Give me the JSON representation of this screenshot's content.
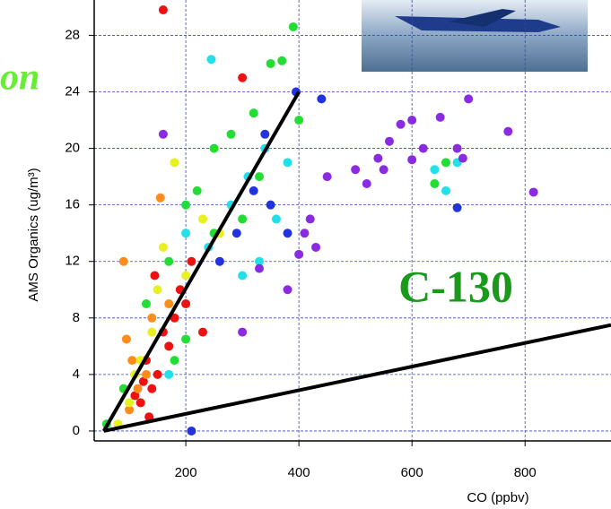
{
  "chart_data": {
    "type": "scatter",
    "title_fragment": "on",
    "annotation": "C-130",
    "x_label": "CO (ppbv)",
    "y_label": "AMS Organics (ug/m³)",
    "xlim": [
      38,
      952
    ],
    "ylim": [
      -0.7,
      30.5
    ],
    "xticks": [
      200,
      400,
      600,
      800
    ],
    "yticks": [
      0,
      4,
      8,
      12,
      16,
      20,
      24,
      28
    ],
    "grid": true,
    "series": [
      {
        "color": "#ee1111",
        "x": [
          160,
          135,
          120,
          140,
          110,
          150,
          130,
          170,
          180,
          200,
          145,
          210,
          160,
          125,
          190,
          300,
          230
        ],
        "y": [
          29.8,
          1,
          2,
          3,
          2.5,
          4,
          5,
          6,
          8,
          9,
          11,
          12,
          7,
          3.5,
          10,
          25,
          7
        ]
      },
      {
        "color": "#ff8c1a",
        "x": [
          90,
          95,
          100,
          130,
          155,
          105,
          115,
          140,
          170
        ],
        "y": [
          12,
          6.5,
          1.5,
          4,
          16.5,
          5,
          3,
          8,
          9
        ]
      },
      {
        "color": "#e8f020",
        "x": [
          80,
          100,
          120,
          150,
          180,
          160,
          140,
          200,
          110,
          260,
          230
        ],
        "y": [
          0.5,
          2,
          5,
          10,
          19,
          13,
          7,
          11,
          4,
          14,
          15
        ]
      },
      {
        "color": "#22dd33",
        "x": [
          60,
          90,
          130,
          170,
          200,
          220,
          250,
          280,
          320,
          350,
          390,
          370,
          400,
          200,
          640,
          660,
          330,
          300,
          250,
          180
        ],
        "y": [
          0.5,
          3,
          9,
          12,
          16,
          17,
          20,
          21,
          22.5,
          26,
          28.6,
          26.2,
          22,
          6.5,
          17.5,
          19,
          18,
          15,
          14,
          5
        ]
      },
      {
        "color": "#22e0e8",
        "x": [
          245,
          200,
          240,
          280,
          310,
          330,
          360,
          380,
          640,
          660,
          680,
          170,
          300,
          340
        ],
        "y": [
          26.3,
          14,
          13,
          16,
          18,
          12,
          15,
          19,
          18.5,
          17,
          19,
          4,
          11,
          20
        ]
      },
      {
        "color": "#2233dd",
        "x": [
          395,
          440,
          680,
          210,
          320,
          350,
          380,
          290,
          260,
          340
        ],
        "y": [
          24,
          23.5,
          15.8,
          0,
          17,
          16,
          14,
          14,
          12,
          21
        ]
      },
      {
        "color": "#8a2be2",
        "x": [
          160,
          300,
          400,
          420,
          450,
          500,
          520,
          540,
          560,
          580,
          600,
          620,
          650,
          700,
          690,
          770,
          815,
          330,
          380,
          410,
          430,
          550,
          680,
          600
        ],
        "y": [
          21,
          7,
          12.5,
          15,
          18,
          18.5,
          17.5,
          19.3,
          20.5,
          21.7,
          22,
          20,
          22.2,
          23.5,
          19.3,
          21.2,
          16.9,
          11.5,
          10,
          14,
          13,
          18.5,
          20,
          19.2
        ]
      }
    ],
    "lines": [
      {
        "color": "#000000",
        "x": [
          55,
          400
        ],
        "y": [
          0,
          24
        ]
      },
      {
        "color": "#000000",
        "x": [
          55,
          952
        ],
        "y": [
          0,
          7.5
        ]
      }
    ]
  }
}
